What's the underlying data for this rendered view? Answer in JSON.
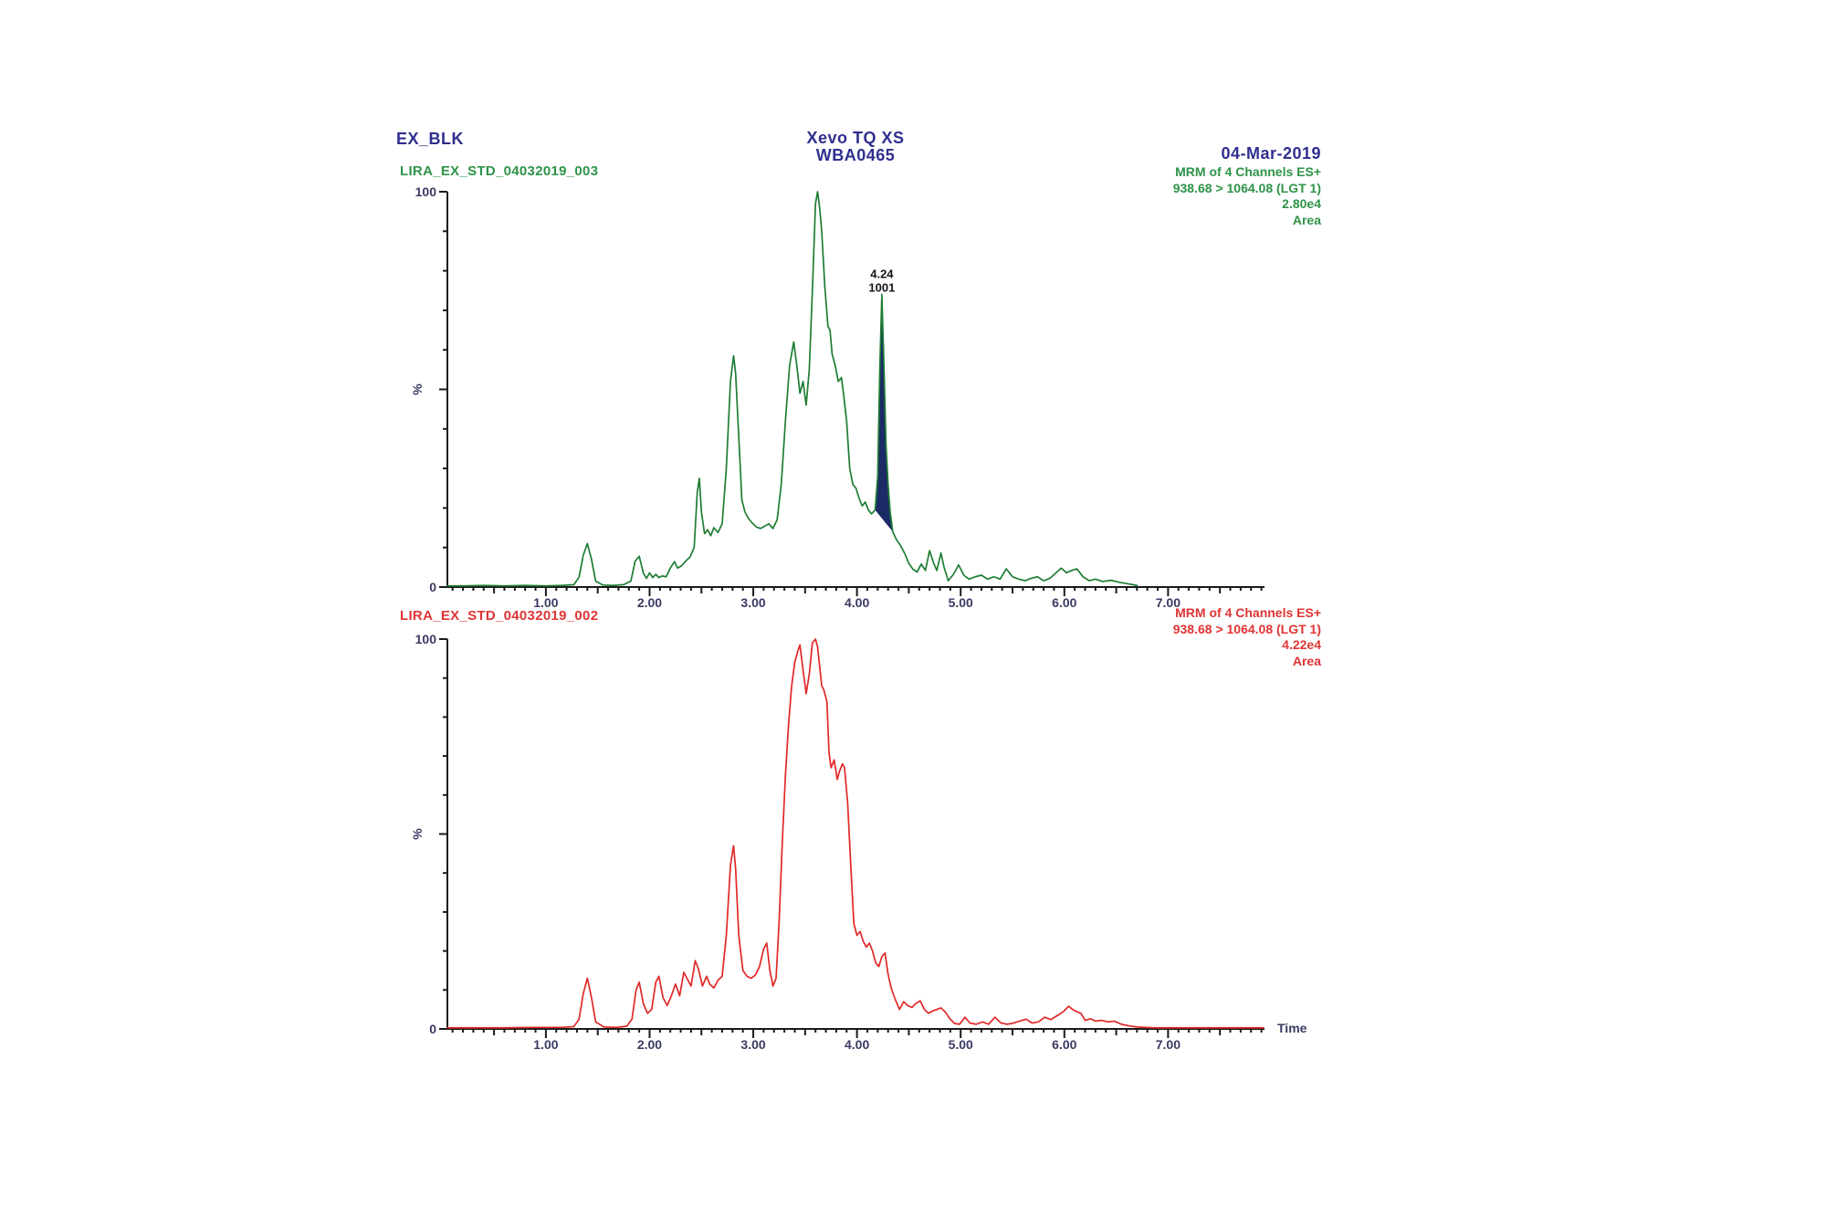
{
  "header": {
    "sample_id": "EX_BLK",
    "instrument": "Xevo TQ XS",
    "instrument_id": "WBA0465",
    "date": "04-Mar-2019"
  },
  "colors": {
    "header_text": "#2f2f8f",
    "axis": "#1a1a1a",
    "tick_label": "#3a3a64",
    "green_trace": "#1e7d33",
    "red_trace": "#e02828",
    "peak_fill": "#1c2a66"
  },
  "chart_data": [
    {
      "type": "line",
      "id": "top",
      "trace_label": "LIRA_EX_STD_04032019_003",
      "color": "#1e7d33",
      "annotation_lines": [
        "MRM of 4 Channels ES+",
        "938.68 > 1064.08 (LGT 1)",
        "2.80e4",
        "Area"
      ],
      "ylabel": "%",
      "xlabel": "",
      "ylim": [
        0,
        100
      ],
      "x_range": [
        0.05,
        7.93
      ],
      "grid": false,
      "yticks": [
        {
          "v": 100,
          "label": "100"
        },
        {
          "v": 0,
          "label": "0"
        }
      ],
      "xticks": [
        {
          "v": 1,
          "label": "1.00"
        },
        {
          "v": 2,
          "label": "2.00"
        },
        {
          "v": 3,
          "label": "3.00"
        },
        {
          "v": 4,
          "label": "4.00"
        },
        {
          "v": 5,
          "label": "5.00"
        },
        {
          "v": 6,
          "label": "6.00"
        },
        {
          "v": 7,
          "label": "7.00"
        }
      ],
      "peak": {
        "time": 4.24,
        "time_label": "4.24",
        "area_label": "1001",
        "apex_percent": 74,
        "fill_from": 4.175,
        "fill_to": 4.345,
        "fill_color": "#1c2a66"
      },
      "points": [
        [
          0.05,
          0.3
        ],
        [
          0.2,
          0.3
        ],
        [
          0.4,
          0.4
        ],
        [
          0.6,
          0.3
        ],
        [
          0.8,
          0.4
        ],
        [
          1.0,
          0.3
        ],
        [
          1.15,
          0.4
        ],
        [
          1.27,
          0.6
        ],
        [
          1.32,
          2.5
        ],
        [
          1.36,
          8
        ],
        [
          1.4,
          11
        ],
        [
          1.44,
          7
        ],
        [
          1.48,
          1.5
        ],
        [
          1.55,
          0.5
        ],
        [
          1.65,
          0.4
        ],
        [
          1.75,
          0.6
        ],
        [
          1.82,
          1.5
        ],
        [
          1.86,
          6.5
        ],
        [
          1.9,
          7.8
        ],
        [
          1.94,
          3.5
        ],
        [
          1.97,
          2.2
        ],
        [
          2.0,
          3.6
        ],
        [
          2.03,
          2.4
        ],
        [
          2.06,
          3.2
        ],
        [
          2.09,
          2.4
        ],
        [
          2.12,
          2.8
        ],
        [
          2.16,
          2.6
        ],
        [
          2.2,
          4.8
        ],
        [
          2.24,
          6.4
        ],
        [
          2.27,
          4.8
        ],
        [
          2.31,
          5.4
        ],
        [
          2.35,
          6.6
        ],
        [
          2.39,
          7.6
        ],
        [
          2.43,
          10
        ],
        [
          2.46,
          24
        ],
        [
          2.48,
          27.5
        ],
        [
          2.5,
          19
        ],
        [
          2.53,
          13.5
        ],
        [
          2.56,
          14.5
        ],
        [
          2.59,
          13
        ],
        [
          2.62,
          15
        ],
        [
          2.66,
          13.8
        ],
        [
          2.7,
          16
        ],
        [
          2.74,
          30
        ],
        [
          2.78,
          52
        ],
        [
          2.81,
          58.5
        ],
        [
          2.83,
          54
        ],
        [
          2.86,
          38
        ],
        [
          2.89,
          22
        ],
        [
          2.92,
          19
        ],
        [
          2.95,
          17.5
        ],
        [
          2.99,
          16.2
        ],
        [
          3.03,
          15.2
        ],
        [
          3.07,
          14.8
        ],
        [
          3.11,
          15.4
        ],
        [
          3.15,
          16
        ],
        [
          3.19,
          14.8
        ],
        [
          3.23,
          17
        ],
        [
          3.27,
          26
        ],
        [
          3.31,
          42
        ],
        [
          3.35,
          56
        ],
        [
          3.39,
          62
        ],
        [
          3.42,
          56
        ],
        [
          3.45,
          49
        ],
        [
          3.48,
          52
        ],
        [
          3.51,
          46
        ],
        [
          3.54,
          55
        ],
        [
          3.57,
          75
        ],
        [
          3.6,
          97
        ],
        [
          3.62,
          100
        ],
        [
          3.64,
          96
        ],
        [
          3.66,
          90
        ],
        [
          3.69,
          76
        ],
        [
          3.72,
          66
        ],
        [
          3.74,
          65
        ],
        [
          3.76,
          59
        ],
        [
          3.79,
          56
        ],
        [
          3.82,
          52
        ],
        [
          3.85,
          53
        ],
        [
          3.87,
          49
        ],
        [
          3.9,
          42
        ],
        [
          3.93,
          30
        ],
        [
          3.96,
          26
        ],
        [
          3.99,
          25
        ],
        [
          4.02,
          22.5
        ],
        [
          4.05,
          20.5
        ],
        [
          4.08,
          21.5
        ],
        [
          4.11,
          19.5
        ],
        [
          4.14,
          18.5
        ],
        [
          4.175,
          19.5
        ],
        [
          4.2,
          28
        ],
        [
          4.22,
          55
        ],
        [
          4.24,
          74
        ],
        [
          4.26,
          56
        ],
        [
          4.28,
          36
        ],
        [
          4.3,
          26
        ],
        [
          4.32,
          19
        ],
        [
          4.345,
          14
        ],
        [
          4.38,
          12
        ],
        [
          4.42,
          10.5
        ],
        [
          4.46,
          8.5
        ],
        [
          4.5,
          6
        ],
        [
          4.54,
          4.5
        ],
        [
          4.58,
          3.8
        ],
        [
          4.62,
          5.8
        ],
        [
          4.66,
          4.2
        ],
        [
          4.7,
          9.2
        ],
        [
          4.74,
          6
        ],
        [
          4.77,
          4.2
        ],
        [
          4.81,
          8.6
        ],
        [
          4.84,
          5
        ],
        [
          4.88,
          1.6
        ],
        [
          4.93,
          3.2
        ],
        [
          4.98,
          5.6
        ],
        [
          5.03,
          3
        ],
        [
          5.08,
          2
        ],
        [
          5.14,
          2.6
        ],
        [
          5.2,
          3
        ],
        [
          5.26,
          2
        ],
        [
          5.32,
          2.6
        ],
        [
          5.38,
          2
        ],
        [
          5.44,
          4.6
        ],
        [
          5.5,
          2.6
        ],
        [
          5.56,
          2
        ],
        [
          5.62,
          1.6
        ],
        [
          5.68,
          2.2
        ],
        [
          5.74,
          2.6
        ],
        [
          5.8,
          1.6
        ],
        [
          5.86,
          2.2
        ],
        [
          5.92,
          3.6
        ],
        [
          5.97,
          4.8
        ],
        [
          6.02,
          3.6
        ],
        [
          6.07,
          4.2
        ],
        [
          6.12,
          4.6
        ],
        [
          6.18,
          2.6
        ],
        [
          6.24,
          1.6
        ],
        [
          6.3,
          2
        ],
        [
          6.37,
          1.4
        ],
        [
          6.45,
          1.7
        ],
        [
          6.53,
          1.2
        ],
        [
          6.62,
          0.8
        ],
        [
          6.7,
          0.4
        ]
      ]
    },
    {
      "type": "line",
      "id": "bottom",
      "trace_label": "LIRA_EX_STD_04032019_002",
      "color": "#e02828",
      "annotation_lines": [
        "MRM of 4 Channels ES+",
        "938.68 > 1064.08 (LGT 1)",
        "4.22e4",
        "Area"
      ],
      "ylabel": "%",
      "xlabel": "Time",
      "ylim": [
        0,
        100
      ],
      "x_range": [
        0.05,
        7.93
      ],
      "grid": false,
      "yticks": [
        {
          "v": 100,
          "label": "100"
        },
        {
          "v": 0,
          "label": "0"
        }
      ],
      "xticks": [
        {
          "v": 1,
          "label": "1.00"
        },
        {
          "v": 2,
          "label": "2.00"
        },
        {
          "v": 3,
          "label": "3.00"
        },
        {
          "v": 4,
          "label": "4.00"
        },
        {
          "v": 5,
          "label": "5.00"
        },
        {
          "v": 6,
          "label": "6.00"
        },
        {
          "v": 7,
          "label": "7.00"
        }
      ],
      "points": [
        [
          0.05,
          0.3
        ],
        [
          0.3,
          0.3
        ],
        [
          0.6,
          0.3
        ],
        [
          0.9,
          0.4
        ],
        [
          1.15,
          0.4
        ],
        [
          1.27,
          0.6
        ],
        [
          1.32,
          2.5
        ],
        [
          1.36,
          9
        ],
        [
          1.4,
          13
        ],
        [
          1.44,
          8
        ],
        [
          1.48,
          1.8
        ],
        [
          1.56,
          0.5
        ],
        [
          1.68,
          0.4
        ],
        [
          1.78,
          0.7
        ],
        [
          1.83,
          2.5
        ],
        [
          1.87,
          10
        ],
        [
          1.9,
          12
        ],
        [
          1.94,
          6.5
        ],
        [
          1.98,
          4
        ],
        [
          2.02,
          5
        ],
        [
          2.06,
          12
        ],
        [
          2.09,
          13.5
        ],
        [
          2.13,
          8
        ],
        [
          2.17,
          6
        ],
        [
          2.21,
          8.5
        ],
        [
          2.25,
          11.5
        ],
        [
          2.29,
          8.5
        ],
        [
          2.33,
          14.5
        ],
        [
          2.36,
          13
        ],
        [
          2.4,
          11
        ],
        [
          2.44,
          17.5
        ],
        [
          2.47,
          15.5
        ],
        [
          2.51,
          11
        ],
        [
          2.55,
          13.5
        ],
        [
          2.58,
          11.5
        ],
        [
          2.62,
          10.5
        ],
        [
          2.66,
          12.5
        ],
        [
          2.7,
          13.5
        ],
        [
          2.74,
          24
        ],
        [
          2.78,
          42
        ],
        [
          2.81,
          47
        ],
        [
          2.83,
          41
        ],
        [
          2.86,
          24
        ],
        [
          2.9,
          15
        ],
        [
          2.94,
          13.5
        ],
        [
          2.98,
          13
        ],
        [
          3.02,
          13.8
        ],
        [
          3.06,
          16
        ],
        [
          3.1,
          20.5
        ],
        [
          3.13,
          22
        ],
        [
          3.16,
          15
        ],
        [
          3.19,
          11
        ],
        [
          3.22,
          13
        ],
        [
          3.25,
          28
        ],
        [
          3.28,
          48
        ],
        [
          3.31,
          65
        ],
        [
          3.34,
          78
        ],
        [
          3.37,
          88
        ],
        [
          3.4,
          94
        ],
        [
          3.43,
          97
        ],
        [
          3.45,
          98.5
        ],
        [
          3.48,
          92
        ],
        [
          3.51,
          86
        ],
        [
          3.54,
          91
        ],
        [
          3.57,
          99
        ],
        [
          3.6,
          100
        ],
        [
          3.62,
          98
        ],
        [
          3.64,
          93
        ],
        [
          3.66,
          88
        ],
        [
          3.68,
          87
        ],
        [
          3.71,
          84
        ],
        [
          3.73,
          71
        ],
        [
          3.75,
          67
        ],
        [
          3.78,
          69
        ],
        [
          3.81,
          64
        ],
        [
          3.83,
          66
        ],
        [
          3.86,
          68
        ],
        [
          3.88,
          67
        ],
        [
          3.91,
          58
        ],
        [
          3.94,
          42
        ],
        [
          3.97,
          27
        ],
        [
          4.0,
          24
        ],
        [
          4.03,
          25
        ],
        [
          4.06,
          22.5
        ],
        [
          4.09,
          21
        ],
        [
          4.12,
          22
        ],
        [
          4.15,
          20
        ],
        [
          4.18,
          17
        ],
        [
          4.21,
          16
        ],
        [
          4.24,
          18.5
        ],
        [
          4.27,
          19.5
        ],
        [
          4.3,
          14
        ],
        [
          4.33,
          10.5
        ],
        [
          4.37,
          7.5
        ],
        [
          4.41,
          5
        ],
        [
          4.45,
          7
        ],
        [
          4.49,
          6
        ],
        [
          4.53,
          5.5
        ],
        [
          4.57,
          6.6
        ],
        [
          4.61,
          7.2
        ],
        [
          4.65,
          5
        ],
        [
          4.69,
          4
        ],
        [
          4.73,
          4.6
        ],
        [
          4.77,
          5
        ],
        [
          4.81,
          5.4
        ],
        [
          4.85,
          4.4
        ],
        [
          4.89,
          2.8
        ],
        [
          4.94,
          1.4
        ],
        [
          4.99,
          1.2
        ],
        [
          5.04,
          3
        ],
        [
          5.09,
          1.5
        ],
        [
          5.15,
          1.2
        ],
        [
          5.21,
          1.8
        ],
        [
          5.27,
          1.2
        ],
        [
          5.33,
          3
        ],
        [
          5.39,
          1.5
        ],
        [
          5.45,
          1.2
        ],
        [
          5.51,
          1.5
        ],
        [
          5.57,
          2
        ],
        [
          5.63,
          2.5
        ],
        [
          5.69,
          1.5
        ],
        [
          5.75,
          1.8
        ],
        [
          5.81,
          3
        ],
        [
          5.87,
          2.4
        ],
        [
          5.93,
          3.4
        ],
        [
          5.99,
          4.4
        ],
        [
          6.04,
          5.8
        ],
        [
          6.08,
          5
        ],
        [
          6.12,
          4.4
        ],
        [
          6.16,
          4
        ],
        [
          6.2,
          2.2
        ],
        [
          6.25,
          2.6
        ],
        [
          6.3,
          2
        ],
        [
          6.36,
          2.2
        ],
        [
          6.42,
          1.8
        ],
        [
          6.48,
          2
        ],
        [
          6.55,
          1.2
        ],
        [
          6.62,
          0.8
        ],
        [
          6.7,
          0.5
        ],
        [
          6.85,
          0.3
        ],
        [
          7.1,
          0.3
        ],
        [
          7.4,
          0.3
        ],
        [
          7.7,
          0.3
        ],
        [
          7.92,
          0.3
        ]
      ]
    }
  ]
}
